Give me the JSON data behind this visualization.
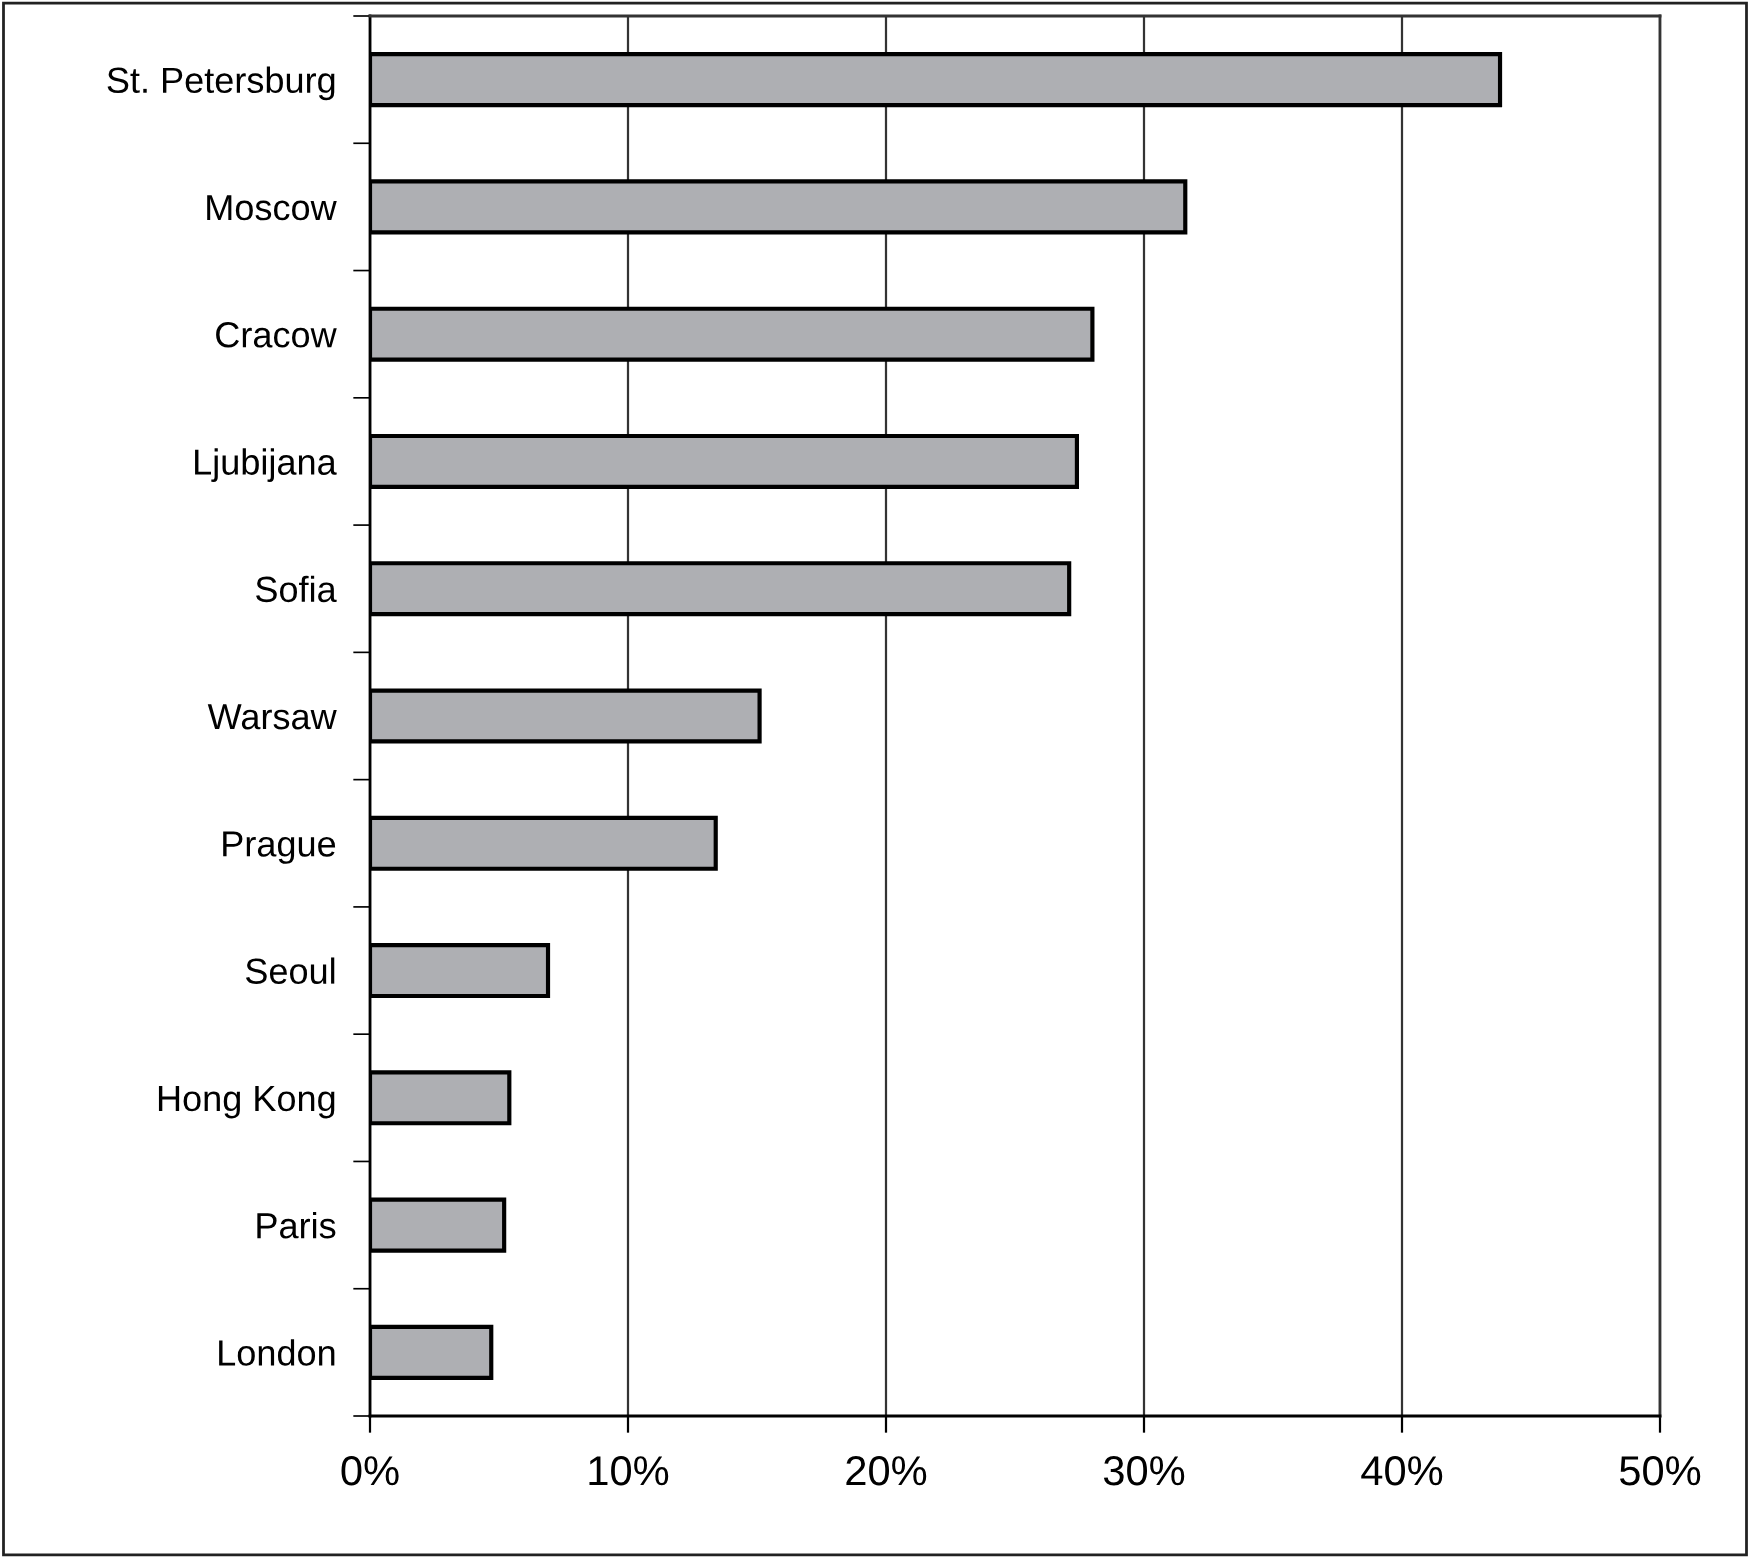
{
  "chart_data": {
    "type": "bar",
    "orientation": "horizontal",
    "categories": [
      "St. Petersburg",
      "Moscow",
      "Cracow",
      "Ljubijana",
      "Sofia",
      "Warsaw",
      "Prague",
      "Seoul",
      "Hong Kong",
      "Paris",
      "London"
    ],
    "values": [
      43.8,
      31.6,
      28.0,
      27.4,
      27.1,
      15.1,
      13.4,
      6.9,
      5.4,
      5.2,
      4.7
    ],
    "color": "#aeafb3",
    "xlim": [
      0,
      50
    ],
    "xticks": [
      {
        "value": 0,
        "label": "0%"
      },
      {
        "value": 10,
        "label": "10%"
      },
      {
        "value": 20,
        "label": "20%"
      },
      {
        "value": 30,
        "label": "30%"
      },
      {
        "value": 40,
        "label": "40%"
      },
      {
        "value": 50,
        "label": "50%"
      }
    ],
    "grid": "x"
  }
}
